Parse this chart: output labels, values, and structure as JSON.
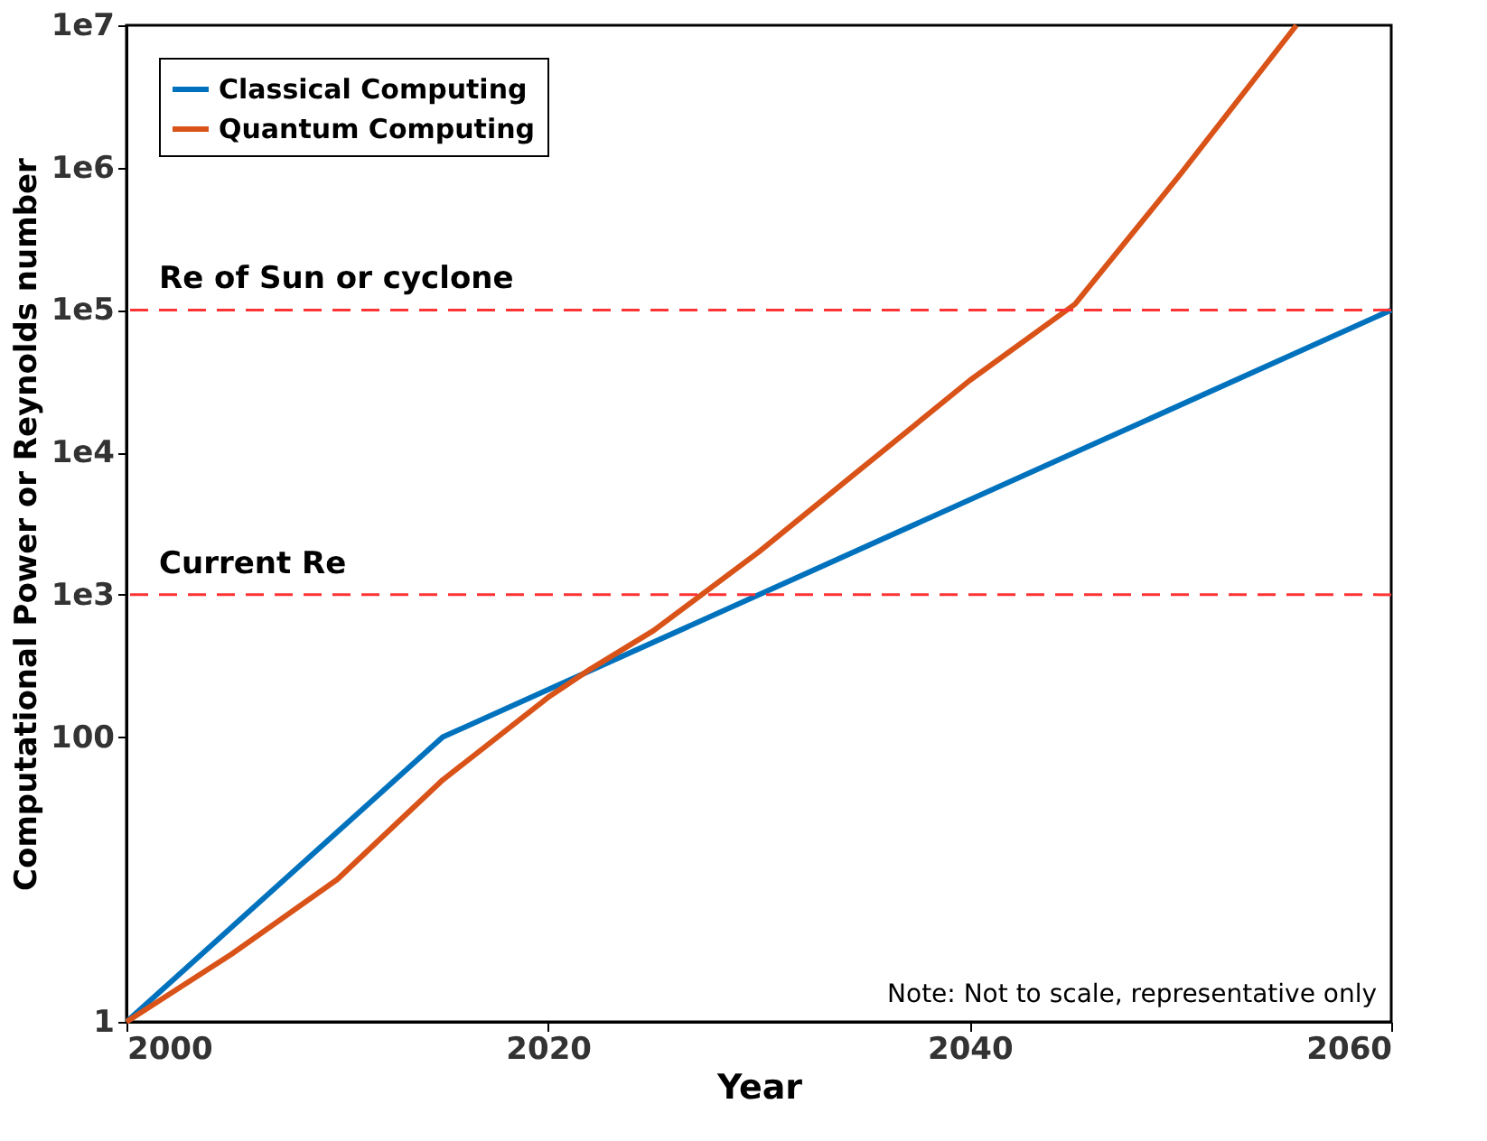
{
  "chart_data": {
    "type": "line",
    "xlabel": "Year",
    "ylabel": "Computational Power or Reynolds number",
    "xlim": [
      2000,
      2060
    ],
    "xticks": [
      2000,
      2020,
      2040,
      2060
    ],
    "log": "y",
    "ylim": [
      1,
      10000000
    ],
    "yticks": [
      1,
      100,
      {
        "value": 1000,
        "label": "1e3"
      },
      {
        "value": 10000,
        "label": "1e4"
      },
      {
        "value": 100000,
        "label": "1e5"
      },
      {
        "value": 1000000,
        "label": "1e6"
      },
      {
        "value": 10000000,
        "label": "1e7"
      }
    ],
    "series": [
      {
        "name": "Classical Computing",
        "color": "#0072bd",
        "x": [
          2000,
          2015,
          2060
        ],
        "values": [
          1,
          100,
          100000
        ]
      },
      {
        "name": "Quantum Computing",
        "color": "#d95319",
        "x": [
          2000,
          2005,
          2010,
          2015,
          2020,
          2022,
          2025,
          2030,
          2035,
          2040,
          2045,
          2050,
          2055.5
        ],
        "values": [
          1,
          3,
          10,
          50,
          190,
          300,
          560,
          2000,
          8000,
          32000,
          110000,
          900000,
          10000000
        ]
      }
    ],
    "ref_lines": [
      {
        "axis": "y",
        "value": 1000,
        "label": "Current Re",
        "color": "#ff3333",
        "line_style": "dashed"
      },
      {
        "axis": "y",
        "value": 100000,
        "label": "Re of Sun or cyclone",
        "color": "#ff3333",
        "line_style": "dashed"
      }
    ],
    "annotations": [
      "Note: Not to scale, representative only"
    ],
    "legend": "top left",
    "grid": false
  }
}
